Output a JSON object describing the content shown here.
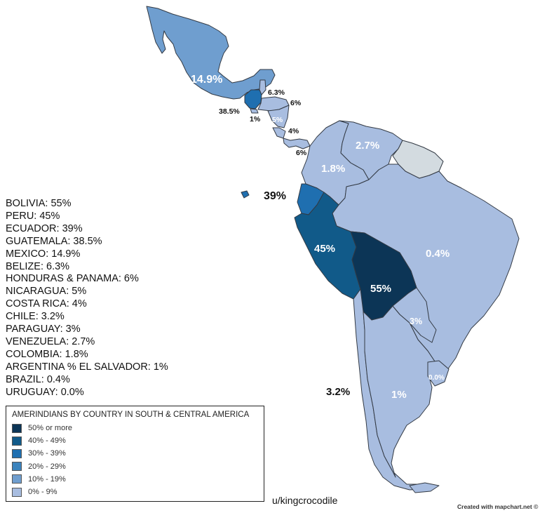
{
  "map": {
    "colors": {
      "c50": "#0c3556",
      "c40": "#115a89",
      "c30": "#1f6fb0",
      "c20": "#3b83bd",
      "c10": "#6f9ecf",
      "c0": "#a8bde0",
      "nodata": "#d3dbe0"
    },
    "labels": {
      "mexico": "14.9%",
      "belize": "6.3%",
      "guatemala": "38.5%",
      "el_salvador": "1%",
      "honduras": "6%",
      "nicaragua": "5%",
      "costa_rica": "4%",
      "panama": "6%",
      "venezuela": "2.7%",
      "colombia": "1.8%",
      "ecuador": "39%",
      "peru": "45%",
      "brazil": "0.4%",
      "bolivia": "55%",
      "paraguay": "3%",
      "uruguay": "0.0%",
      "argentina": "1%",
      "chile": "3.2%"
    }
  },
  "stats": [
    "BOLIVIA: 55%",
    "PERU: 45%",
    "ECUADOR: 39%",
    "GUATEMALA: 38.5%",
    "MEXICO: 14.9%",
    "BELIZE: 6.3%",
    "HONDURAS & PANAMA: 6%",
    "NICARAGUA: 5%",
    "COSTA RICA: 4%",
    "CHILE: 3.2%",
    "PARAGUAY: 3%",
    "VENEZUELA: 2.7%",
    "COLOMBIA: 1.8%",
    "ARGENTINA % EL SALVADOR: 1%",
    "BRAZIL: 0.4%",
    "URUGUAY: 0.0%"
  ],
  "legend": {
    "title": "AMERINDIANS BY COUNTRY IN SOUTH & CENTRAL AMERICA",
    "items": [
      {
        "label": "50% or more",
        "color": "#0c3556"
      },
      {
        "label": "40% - 49%",
        "color": "#115a89"
      },
      {
        "label": "30% - 39%",
        "color": "#1f6fb0"
      },
      {
        "label": "20% - 29%",
        "color": "#3b83bd"
      },
      {
        "label": "10% - 19%",
        "color": "#6f9ecf"
      },
      {
        "label": "0% - 9%",
        "color": "#a8bde0"
      }
    ]
  },
  "credits": {
    "user": "u/kingcrocodile",
    "maker": "Created with mapchart.net ©"
  }
}
